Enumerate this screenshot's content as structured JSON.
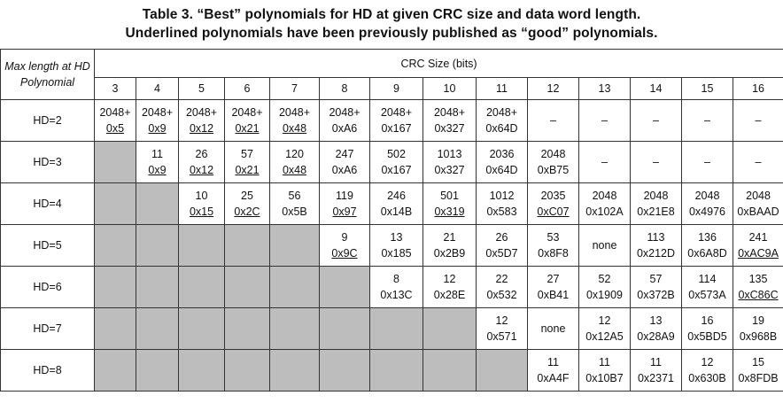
{
  "title": {
    "line1": "Table 3.  “Best” polynomials for HD at given CRC size and data word length.",
    "line2": "Underlined polynomials have been previously published as “good” polynomials."
  },
  "header": {
    "corner_line1": "Max length at HD",
    "corner_line2": "Polynomial",
    "crc_size": "CRC Size (bits)",
    "columns": [
      "3",
      "4",
      "5",
      "6",
      "7",
      "8",
      "9",
      "10",
      "11",
      "12",
      "13",
      "14",
      "15",
      "16"
    ]
  },
  "rows": [
    {
      "label": "HD=2",
      "cells": [
        {
          "len": "2048+",
          "poly": "0x5",
          "u": true
        },
        {
          "len": "2048+",
          "poly": "0x9",
          "u": true
        },
        {
          "len": "2048+",
          "poly": "0x12",
          "u": true
        },
        {
          "len": "2048+",
          "poly": "0x21",
          "u": true
        },
        {
          "len": "2048+",
          "poly": "0x48",
          "u": true
        },
        {
          "len": "2048+",
          "poly": "0xA6",
          "u": false
        },
        {
          "len": "2048+",
          "poly": "0x167",
          "u": false
        },
        {
          "len": "2048+",
          "poly": "0x327",
          "u": false
        },
        {
          "len": "2048+",
          "poly": "0x64D",
          "u": false
        },
        {
          "text": "–"
        },
        {
          "text": "–"
        },
        {
          "text": "–"
        },
        {
          "text": "–"
        },
        {
          "text": "–"
        }
      ]
    },
    {
      "label": "HD=3",
      "cells": [
        {
          "grey": true
        },
        {
          "len": "11",
          "poly": "0x9",
          "u": true
        },
        {
          "len": "26",
          "poly": "0x12",
          "u": true
        },
        {
          "len": "57",
          "poly": "0x21",
          "u": true
        },
        {
          "len": "120",
          "poly": "0x48",
          "u": true
        },
        {
          "len": "247",
          "poly": "0xA6",
          "u": false
        },
        {
          "len": "502",
          "poly": "0x167",
          "u": false
        },
        {
          "len": "1013",
          "poly": "0x327",
          "u": false
        },
        {
          "len": "2036",
          "poly": "0x64D",
          "u": false
        },
        {
          "len": "2048",
          "poly": "0xB75",
          "u": false
        },
        {
          "text": "–"
        },
        {
          "text": "–"
        },
        {
          "text": "–"
        },
        {
          "text": "–"
        }
      ]
    },
    {
      "label": "HD=4",
      "cells": [
        {
          "grey": true
        },
        {
          "grey": true
        },
        {
          "len": "10",
          "poly": "0x15",
          "u": true
        },
        {
          "len": "25",
          "poly": "0x2C",
          "u": true
        },
        {
          "len": "56",
          "poly": "0x5B",
          "u": false
        },
        {
          "len": "119",
          "poly": "0x97",
          "u": true
        },
        {
          "len": "246",
          "poly": "0x14B",
          "u": false
        },
        {
          "len": "501",
          "poly": "0x319",
          "u": true
        },
        {
          "len": "1012",
          "poly": "0x583",
          "u": false
        },
        {
          "len": "2035",
          "poly": "0xC07",
          "u": true
        },
        {
          "len": "2048",
          "poly": "0x102A",
          "u": false
        },
        {
          "len": "2048",
          "poly": "0x21E8",
          "u": false
        },
        {
          "len": "2048",
          "poly": "0x4976",
          "u": false
        },
        {
          "len": "2048",
          "poly": "0xBAAD",
          "u": false
        }
      ]
    },
    {
      "label": "HD=5",
      "cells": [
        {
          "grey": true
        },
        {
          "grey": true
        },
        {
          "grey": true
        },
        {
          "grey": true
        },
        {
          "grey": true
        },
        {
          "len": "9",
          "poly": "0x9C",
          "u": true
        },
        {
          "len": "13",
          "poly": "0x185",
          "u": false
        },
        {
          "len": "21",
          "poly": "0x2B9",
          "u": false
        },
        {
          "len": "26",
          "poly": "0x5D7",
          "u": false
        },
        {
          "len": "53",
          "poly": "0x8F8",
          "u": false
        },
        {
          "text": "none"
        },
        {
          "len": "113",
          "poly": "0x212D",
          "u": false
        },
        {
          "len": "136",
          "poly": "0x6A8D",
          "u": false
        },
        {
          "len": "241",
          "poly": "0xAC9A",
          "u": true
        }
      ]
    },
    {
      "label": "HD=6",
      "cells": [
        {
          "grey": true
        },
        {
          "grey": true
        },
        {
          "grey": true
        },
        {
          "grey": true
        },
        {
          "grey": true
        },
        {
          "grey": true
        },
        {
          "len": "8",
          "poly": "0x13C",
          "u": false
        },
        {
          "len": "12",
          "poly": "0x28E",
          "u": false
        },
        {
          "len": "22",
          "poly": "0x532",
          "u": false
        },
        {
          "len": "27",
          "poly": "0xB41",
          "u": false
        },
        {
          "len": "52",
          "poly": "0x1909",
          "u": false
        },
        {
          "len": "57",
          "poly": "0x372B",
          "u": false
        },
        {
          "len": "114",
          "poly": "0x573A",
          "u": false
        },
        {
          "len": "135",
          "poly": "0xC86C",
          "u": true
        }
      ]
    },
    {
      "label": "HD=7",
      "cells": [
        {
          "grey": true
        },
        {
          "grey": true
        },
        {
          "grey": true
        },
        {
          "grey": true
        },
        {
          "grey": true
        },
        {
          "grey": true
        },
        {
          "grey": true
        },
        {
          "grey": true
        },
        {
          "len": "12",
          "poly": "0x571",
          "u": false
        },
        {
          "text": "none"
        },
        {
          "len": "12",
          "poly": "0x12A5",
          "u": false
        },
        {
          "len": "13",
          "poly": "0x28A9",
          "u": false
        },
        {
          "len": "16",
          "poly": "0x5BD5",
          "u": false
        },
        {
          "len": "19",
          "poly": "0x968B",
          "u": false
        }
      ]
    },
    {
      "label": "HD=8",
      "cells": [
        {
          "grey": true
        },
        {
          "grey": true
        },
        {
          "grey": true
        },
        {
          "grey": true
        },
        {
          "grey": true
        },
        {
          "grey": true
        },
        {
          "grey": true
        },
        {
          "grey": true
        },
        {
          "grey": true
        },
        {
          "len": "11",
          "poly": "0xA4F",
          "u": false
        },
        {
          "len": "11",
          "poly": "0x10B7",
          "u": false
        },
        {
          "len": "11",
          "poly": "0x2371",
          "u": false
        },
        {
          "len": "12",
          "poly": "0x630B",
          "u": false
        },
        {
          "len": "15",
          "poly": "0x8FDB",
          "u": false
        }
      ]
    }
  ]
}
